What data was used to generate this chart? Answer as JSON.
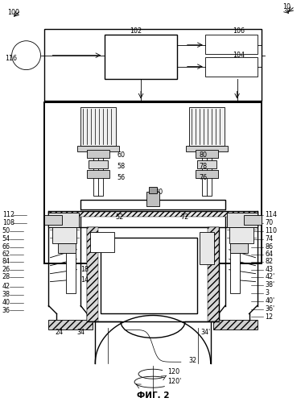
{
  "title": "ФИГ. 2",
  "bg_color": "#ffffff",
  "line_color": "#000000",
  "fig_width": 3.79,
  "fig_height": 4.99,
  "dpi": 100
}
